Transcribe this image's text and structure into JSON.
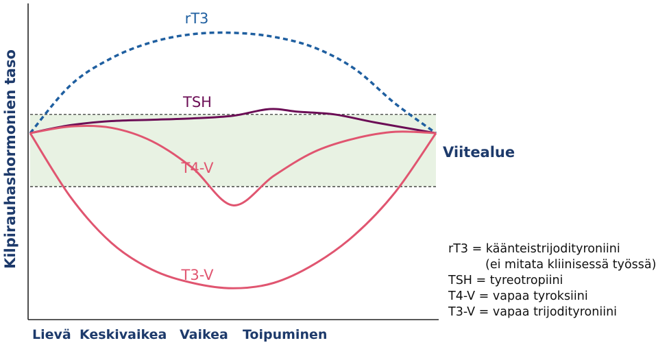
{
  "chart_data": {
    "type": "line",
    "title": "",
    "xlabel": "",
    "ylabel": "Kilpirauhashormonien taso",
    "categories": [
      "Lievä",
      "Keskivaikea",
      "Vaikea",
      "Toipuminen"
    ],
    "x_range": [
      0,
      10
    ],
    "y_range": [
      0,
      10
    ],
    "reference_band": {
      "label": "Viitealue",
      "low": 4.1,
      "high": 6.8,
      "color": "#e8f2e3"
    },
    "series": [
      {
        "name": "rT3",
        "color": "#1f5fa0",
        "dash": true,
        "points": [
          [
            0,
            6.1
          ],
          [
            1,
            7.9
          ],
          [
            2,
            8.9
          ],
          [
            3,
            9.5
          ],
          [
            4,
            9.8
          ],
          [
            5,
            9.85
          ],
          [
            6,
            9.7
          ],
          [
            7,
            9.3
          ],
          [
            8,
            8.5
          ],
          [
            9,
            7.2
          ],
          [
            10,
            6.1
          ]
        ]
      },
      {
        "name": "TSH",
        "color": "#6b0d55",
        "dash": false,
        "points": [
          [
            0,
            6.1
          ],
          [
            1,
            6.4
          ],
          [
            2,
            6.55
          ],
          [
            3,
            6.6
          ],
          [
            4,
            6.65
          ],
          [
            5,
            6.75
          ],
          [
            5.9,
            7.0
          ],
          [
            6.6,
            6.9
          ],
          [
            7.5,
            6.8
          ],
          [
            8.5,
            6.5
          ],
          [
            10,
            6.1
          ]
        ]
      },
      {
        "name": "T4-V",
        "color": "#e05570",
        "dash": false,
        "points": [
          [
            0,
            6.1
          ],
          [
            1,
            6.35
          ],
          [
            2,
            6.3
          ],
          [
            3,
            5.8
          ],
          [
            4,
            4.8
          ],
          [
            5,
            3.4
          ],
          [
            6,
            4.5
          ],
          [
            7,
            5.4
          ],
          [
            8,
            5.9
          ],
          [
            9,
            6.15
          ],
          [
            10,
            6.1
          ]
        ]
      },
      {
        "name": "T3-V",
        "color": "#e05570",
        "dash": false,
        "points": [
          [
            0,
            6.1
          ],
          [
            1,
            3.7
          ],
          [
            2,
            2.0
          ],
          [
            3,
            1.0
          ],
          [
            4,
            0.5
          ],
          [
            5,
            0.3
          ],
          [
            6,
            0.5
          ],
          [
            7,
            1.2
          ],
          [
            8,
            2.3
          ],
          [
            9,
            3.9
          ],
          [
            10,
            6.1
          ]
        ]
      }
    ],
    "legend": [
      "rT3 = käänteistrijodityroniini",
      "(ei mitata kliinisessä työssä)",
      "TSH = tyreotropiini",
      "T4-V = vapaa tyroksiini",
      "T3-V = vapaa trijodityroniini"
    ],
    "grid": false,
    "legend_placement": "bottom-right"
  }
}
